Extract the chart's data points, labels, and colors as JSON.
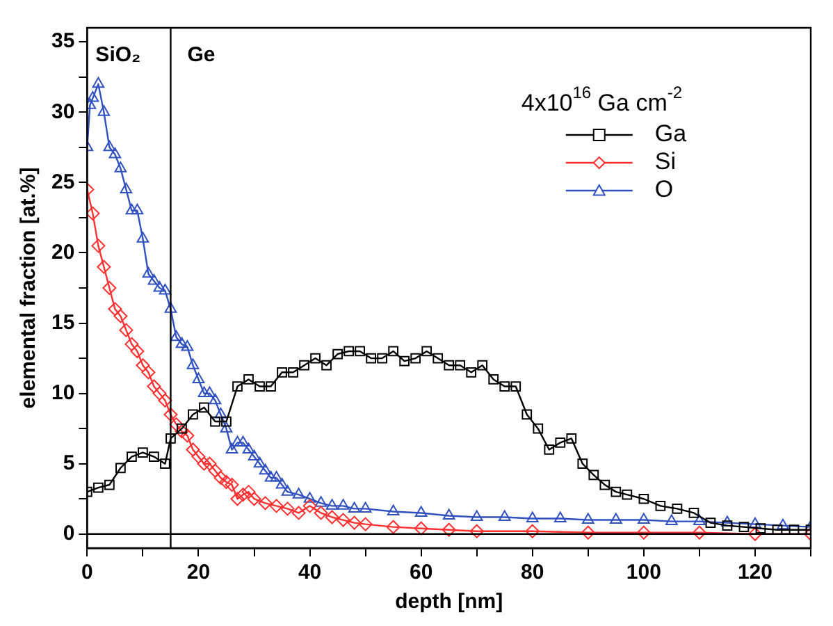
{
  "chart_data": {
    "type": "line",
    "xlabel": "depth [nm]",
    "ylabel": "elemental fraction [at.%]",
    "legend_title": "4x10$^{16}$ Ga cm$^{-2}$",
    "legend": "top right",
    "grid": false,
    "line_style": "solid",
    "xlim": [
      0,
      130
    ],
    "ylim": [
      -1,
      36
    ],
    "xticks": [
      0,
      20,
      40,
      60,
      80,
      100,
      120
    ],
    "yticks": [
      0,
      5,
      10,
      15,
      20,
      25,
      30,
      35
    ],
    "ref_lines": [
      {
        "axis": "y",
        "value": 0,
        "color": "#000000"
      },
      {
        "axis": "x",
        "value": 15,
        "color": "#000000"
      }
    ],
    "annotations": [
      "SiO₂",
      "Ge"
    ],
    "series": [
      {
        "name": "Ga",
        "color": "#000000",
        "marker": "square",
        "x": [
          0,
          2,
          4,
          6,
          8,
          10,
          12,
          14,
          15,
          17,
          19,
          21,
          23,
          25,
          27,
          29,
          31,
          33,
          35,
          37,
          39,
          41,
          43,
          45,
          47,
          49,
          51,
          53,
          55,
          57,
          59,
          61,
          63,
          65,
          67,
          69,
          71,
          73,
          75,
          77,
          79,
          81,
          83,
          85,
          87,
          89,
          91,
          93,
          95,
          97,
          100,
          103,
          106,
          109,
          112,
          115,
          118,
          121,
          124,
          127,
          130
        ],
        "values": [
          3,
          3.3,
          3.5,
          4.7,
          5.5,
          5.8,
          5.5,
          5,
          6.8,
          7.5,
          8.5,
          9,
          8,
          8,
          10.5,
          11,
          10.5,
          10.5,
          11.5,
          11.5,
          12,
          12.5,
          12,
          12.8,
          13,
          13,
          12.5,
          12.5,
          13,
          12.3,
          12.5,
          13,
          12.5,
          12,
          12,
          11.5,
          12,
          11,
          10.5,
          10.5,
          8.5,
          7.5,
          6,
          6.5,
          6.8,
          5,
          4.2,
          3.5,
          3,
          2.8,
          2.5,
          2,
          1.8,
          1.5,
          0.8,
          0.6,
          0.5,
          0.4,
          0.3,
          0.3,
          0.3
        ]
      },
      {
        "name": "Si",
        "color": "#ff3030",
        "marker": "diamond",
        "x": [
          0,
          1,
          2,
          3,
          4,
          5,
          6,
          7,
          8,
          9,
          10,
          11,
          12,
          13,
          14,
          15,
          16,
          17,
          18,
          19,
          20,
          21,
          22,
          23,
          24,
          25,
          26,
          27,
          28,
          29,
          30,
          32,
          34,
          36,
          38,
          40,
          42,
          44,
          46,
          48,
          50,
          55,
          60,
          65,
          70,
          80,
          90,
          100,
          110,
          120,
          130
        ],
        "values": [
          24.5,
          22.8,
          20.5,
          19,
          17.5,
          16,
          15.5,
          14.5,
          13.5,
          13,
          12,
          11.5,
          10.5,
          10,
          9.5,
          8.5,
          7.8,
          7.3,
          7,
          6,
          5.5,
          5,
          5,
          4.5,
          4,
          3.7,
          3.5,
          2.5,
          2.8,
          3,
          2.5,
          2.2,
          2,
          1.8,
          1.5,
          2,
          1.5,
          1.2,
          1,
          0.8,
          0.7,
          0.5,
          0.4,
          0.3,
          0.2,
          0.2,
          0.1,
          0.1,
          0.1,
          0,
          0
        ]
      },
      {
        "name": "O",
        "color": "#3050c0",
        "marker": "triangle",
        "x": [
          0,
          0.5,
          1,
          2,
          3,
          4,
          5,
          6,
          7,
          8,
          9,
          10,
          11,
          12,
          13,
          14,
          15,
          16,
          17,
          18,
          19,
          20,
          21,
          22,
          23,
          24,
          25,
          26,
          27,
          28,
          29,
          30,
          31,
          32,
          33,
          34,
          35,
          36,
          38,
          40,
          42,
          44,
          46,
          48,
          50,
          55,
          60,
          65,
          70,
          75,
          80,
          85,
          90,
          95,
          100,
          105,
          110,
          115,
          120,
          125,
          130
        ],
        "values": [
          27.5,
          30.5,
          31,
          32,
          30,
          27.5,
          27,
          26,
          24.5,
          23,
          23,
          21,
          18.5,
          18,
          17.5,
          17.3,
          16,
          14,
          13.5,
          13.3,
          12,
          11,
          10,
          10,
          9.5,
          8.5,
          7.5,
          6,
          6.5,
          6.5,
          6,
          5.5,
          5,
          4.5,
          4,
          4,
          3.5,
          3,
          2.8,
          2.5,
          2.2,
          2,
          2,
          1.8,
          1.8,
          1.6,
          1.5,
          1.3,
          1.2,
          1.2,
          1.1,
          1.1,
          1,
          1,
          1,
          0.9,
          0.9,
          0.8,
          0.7,
          0.6,
          0.5
        ]
      }
    ]
  }
}
